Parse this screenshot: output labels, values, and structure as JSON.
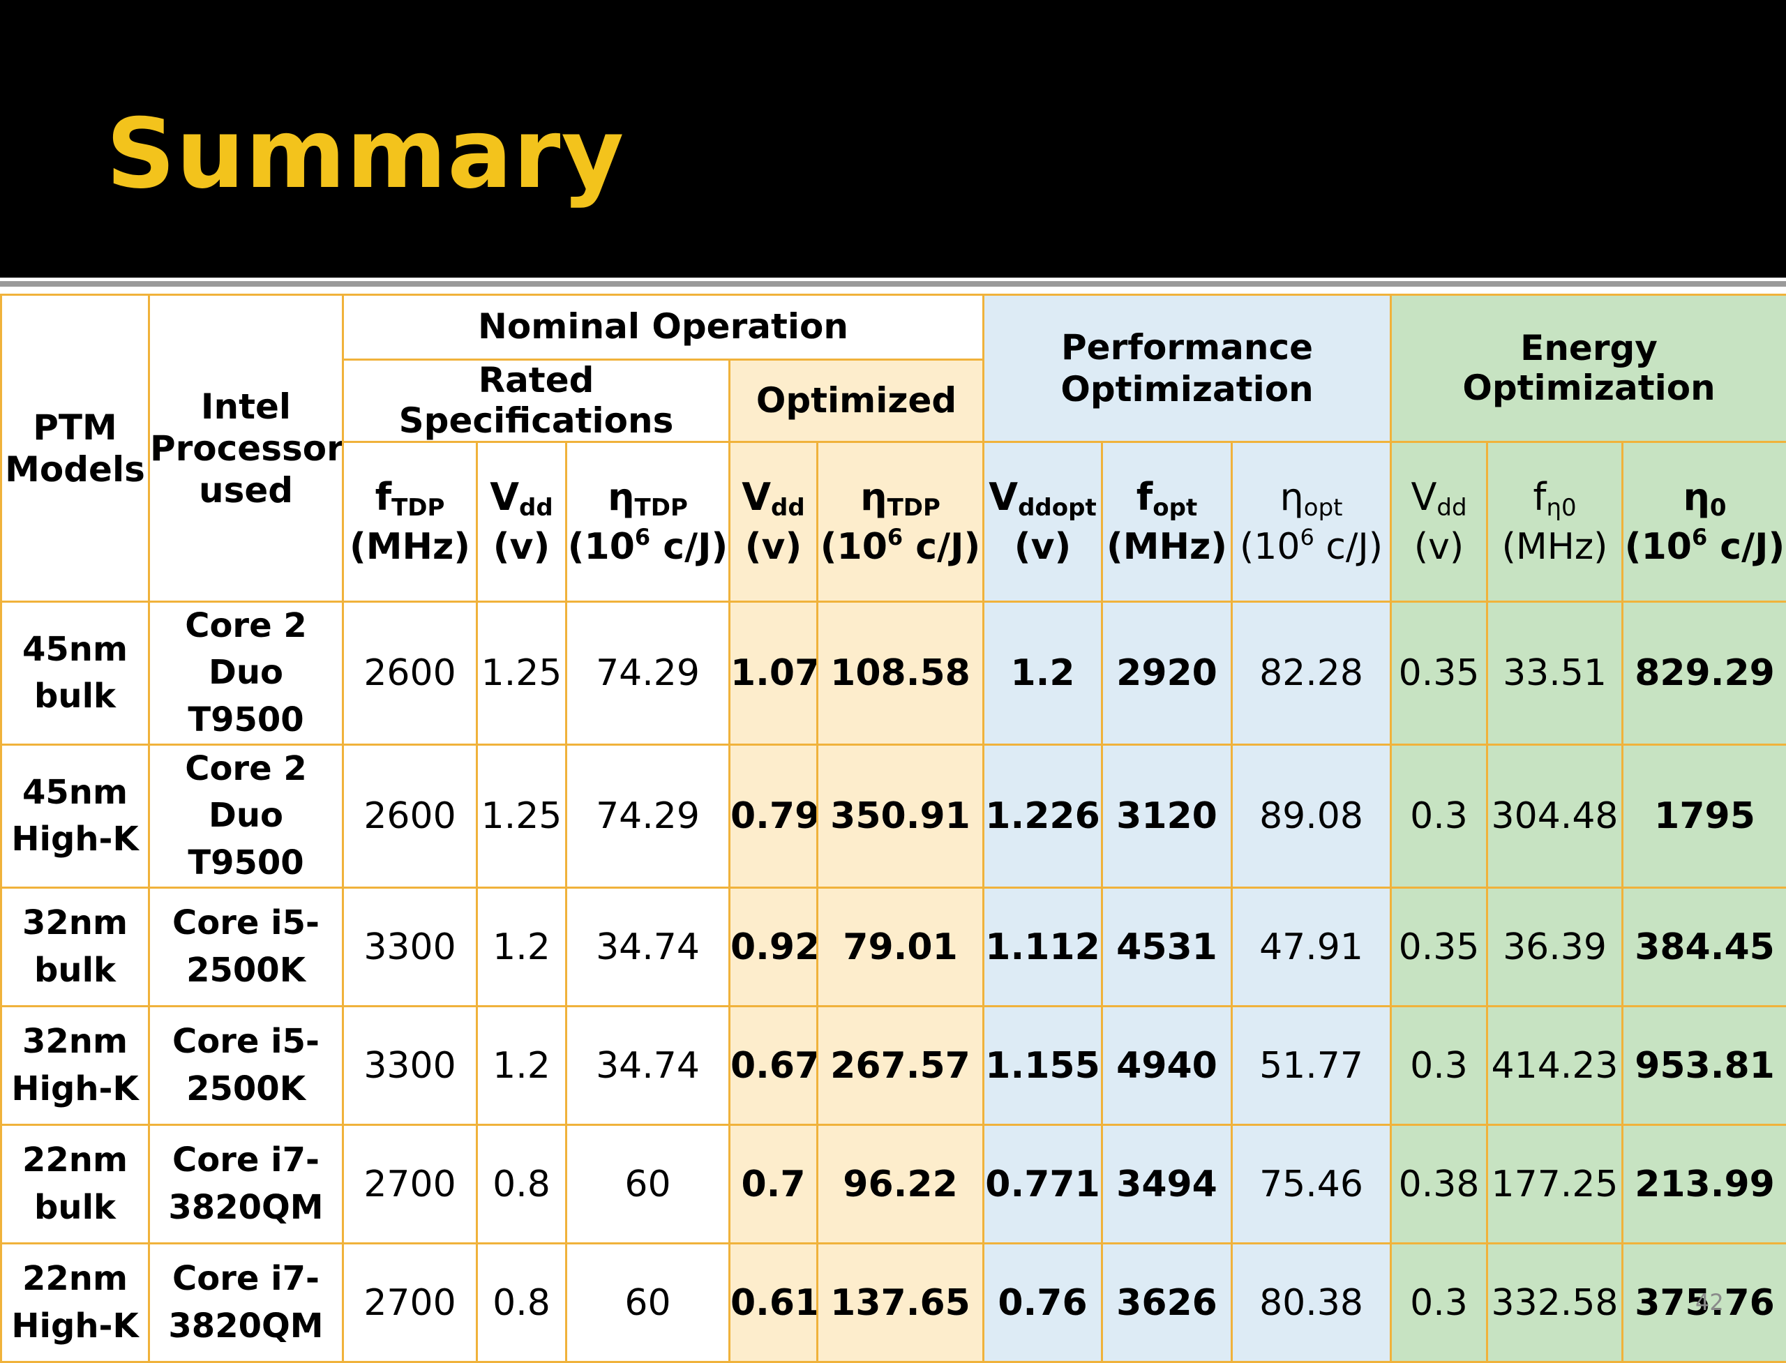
{
  "title": "Summary",
  "page_number": "42",
  "colors": {
    "title": "#f3c31c",
    "header_band": "#000000",
    "border": "#f0b23b",
    "optimized_fill": "#fdedcc",
    "performance_fill": "#ddebf5",
    "energy_fill": "#c7e3c2"
  },
  "headers": {
    "ptm_models": "PTM Models",
    "intel_processor": "Intel Processor used",
    "nominal_operation": "Nominal Operation",
    "rated_specifications": "Rated Specifications",
    "optimized": "Optimized",
    "performance_optimization": "Performance Optimization",
    "energy_optimization": "Energy Optimization",
    "columns": [
      {
        "sym": "f",
        "sub": "TDP",
        "unit_pre": "(MHz)",
        "sup": "",
        "unit_post": ""
      },
      {
        "sym": "V",
        "sub": "dd",
        "unit_pre": "(v)",
        "sup": "",
        "unit_post": ""
      },
      {
        "sym": "η",
        "sub": "TDP",
        "unit_pre": "(10",
        "sup": "6",
        "unit_post": " c/J)"
      },
      {
        "sym": "V",
        "sub": "dd",
        "unit_pre": "(v)",
        "sup": "",
        "unit_post": ""
      },
      {
        "sym": "η",
        "sub": "TDP",
        "unit_pre": "(10",
        "sup": "6",
        "unit_post": " c/J)"
      },
      {
        "sym": "V",
        "sub": "ddopt",
        "unit_pre": "(v)",
        "sup": "",
        "unit_post": ""
      },
      {
        "sym": "f",
        "sub": "opt",
        "unit_pre": "(MHz)",
        "sup": "",
        "unit_post": ""
      },
      {
        "sym": "η",
        "sub": "opt",
        "unit_pre": "(10",
        "sup": "6",
        "unit_post": " c/J)"
      },
      {
        "sym": "V",
        "sub": "dd",
        "unit_pre": "(v)",
        "sup": "",
        "unit_post": ""
      },
      {
        "sym": "f",
        "sub": "η0",
        "unit_pre": "(MHz)",
        "sup": "",
        "unit_post": ""
      },
      {
        "sym": "η",
        "sub": "0",
        "unit_pre": "(10",
        "sup": "6",
        "unit_post": " c/J)"
      }
    ]
  },
  "rows": [
    {
      "model": [
        "45nm",
        "bulk"
      ],
      "processor": [
        "Core 2 Duo",
        "T9500"
      ],
      "values": [
        "2600",
        "1.25",
        "74.29",
        "1.07",
        "108.58",
        "1.2",
        "2920",
        "82.28",
        "0.35",
        "33.51",
        "829.29"
      ]
    },
    {
      "model": [
        "45nm",
        "High-K"
      ],
      "processor": [
        "Core 2 Duo",
        "T9500"
      ],
      "values": [
        "2600",
        "1.25",
        "74.29",
        "0.79",
        "350.91",
        "1.226",
        "3120",
        "89.08",
        "0.3",
        "304.48",
        "1795"
      ]
    },
    {
      "model": [
        "32nm",
        "bulk"
      ],
      "processor": [
        "Core i5-",
        "2500K"
      ],
      "values": [
        "3300",
        "1.2",
        "34.74",
        "0.92",
        "79.01",
        "1.112",
        "4531",
        "47.91",
        "0.35",
        "36.39",
        "384.45"
      ]
    },
    {
      "model": [
        "32nm",
        "High-K"
      ],
      "processor": [
        "Core i5-",
        "2500K"
      ],
      "values": [
        "3300",
        "1.2",
        "34.74",
        "0.67",
        "267.57",
        "1.155",
        "4940",
        "51.77",
        "0.3",
        "414.23",
        "953.81"
      ]
    },
    {
      "model": [
        "22nm",
        "bulk"
      ],
      "processor": [
        "Core i7-",
        "3820QM"
      ],
      "values": [
        "2700",
        "0.8",
        "60",
        "0.7",
        "96.22",
        "0.771",
        "3494",
        "75.46",
        "0.38",
        "177.25",
        "213.99"
      ]
    },
    {
      "model": [
        "22nm",
        "High-K"
      ],
      "processor": [
        "Core i7-",
        "3820QM"
      ],
      "values": [
        "2700",
        "0.8",
        "60",
        "0.61",
        "137.65",
        "0.76",
        "3626",
        "80.38",
        "0.3",
        "332.58",
        "375.76"
      ]
    }
  ]
}
